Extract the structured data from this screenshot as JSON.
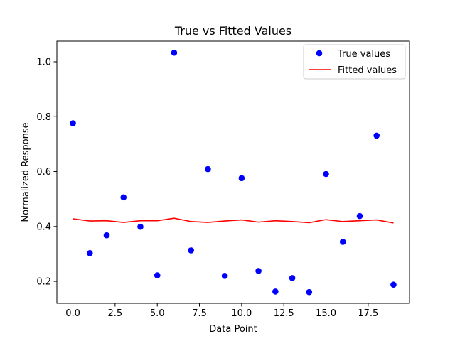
{
  "chart_data": {
    "type": "scatter",
    "title": "True vs Fitted Values",
    "xlabel": "Data Point",
    "ylabel": "Normalized Response",
    "xlim": [
      -0.95,
      19.95
    ],
    "ylim": [
      0.12,
      1.075
    ],
    "x_ticks": [
      0,
      2.5,
      5,
      7.5,
      10,
      12.5,
      15,
      17.5
    ],
    "x_tick_labels": [
      "0.0",
      "2.5",
      "5.0",
      "7.5",
      "10.0",
      "12.5",
      "15.0",
      "17.5"
    ],
    "y_ticks": [
      0.2,
      0.4,
      0.6,
      0.8,
      1.0
    ],
    "y_tick_labels": [
      "0.2",
      "0.4",
      "0.6",
      "0.8",
      "1.0"
    ],
    "grid": false,
    "legend_position": "upper right",
    "x": [
      0,
      1,
      2,
      3,
      4,
      5,
      6,
      7,
      8,
      9,
      10,
      11,
      12,
      13,
      14,
      15,
      16,
      17,
      18,
      19
    ],
    "series": [
      {
        "name": "True values",
        "kind": "scatter",
        "color": "#0000ff",
        "values": [
          0.776,
          0.303,
          0.368,
          0.506,
          0.399,
          0.222,
          1.033,
          0.313,
          0.609,
          0.22,
          0.576,
          0.238,
          0.163,
          0.212,
          0.161,
          0.591,
          0.344,
          0.438,
          0.731,
          0.188
        ]
      },
      {
        "name": "Fitted values",
        "kind": "line",
        "color": "#ff0000",
        "values": [
          0.428,
          0.42,
          0.421,
          0.415,
          0.421,
          0.421,
          0.43,
          0.418,
          0.415,
          0.42,
          0.424,
          0.416,
          0.421,
          0.418,
          0.414,
          0.425,
          0.418,
          0.421,
          0.424,
          0.413
        ]
      }
    ]
  }
}
